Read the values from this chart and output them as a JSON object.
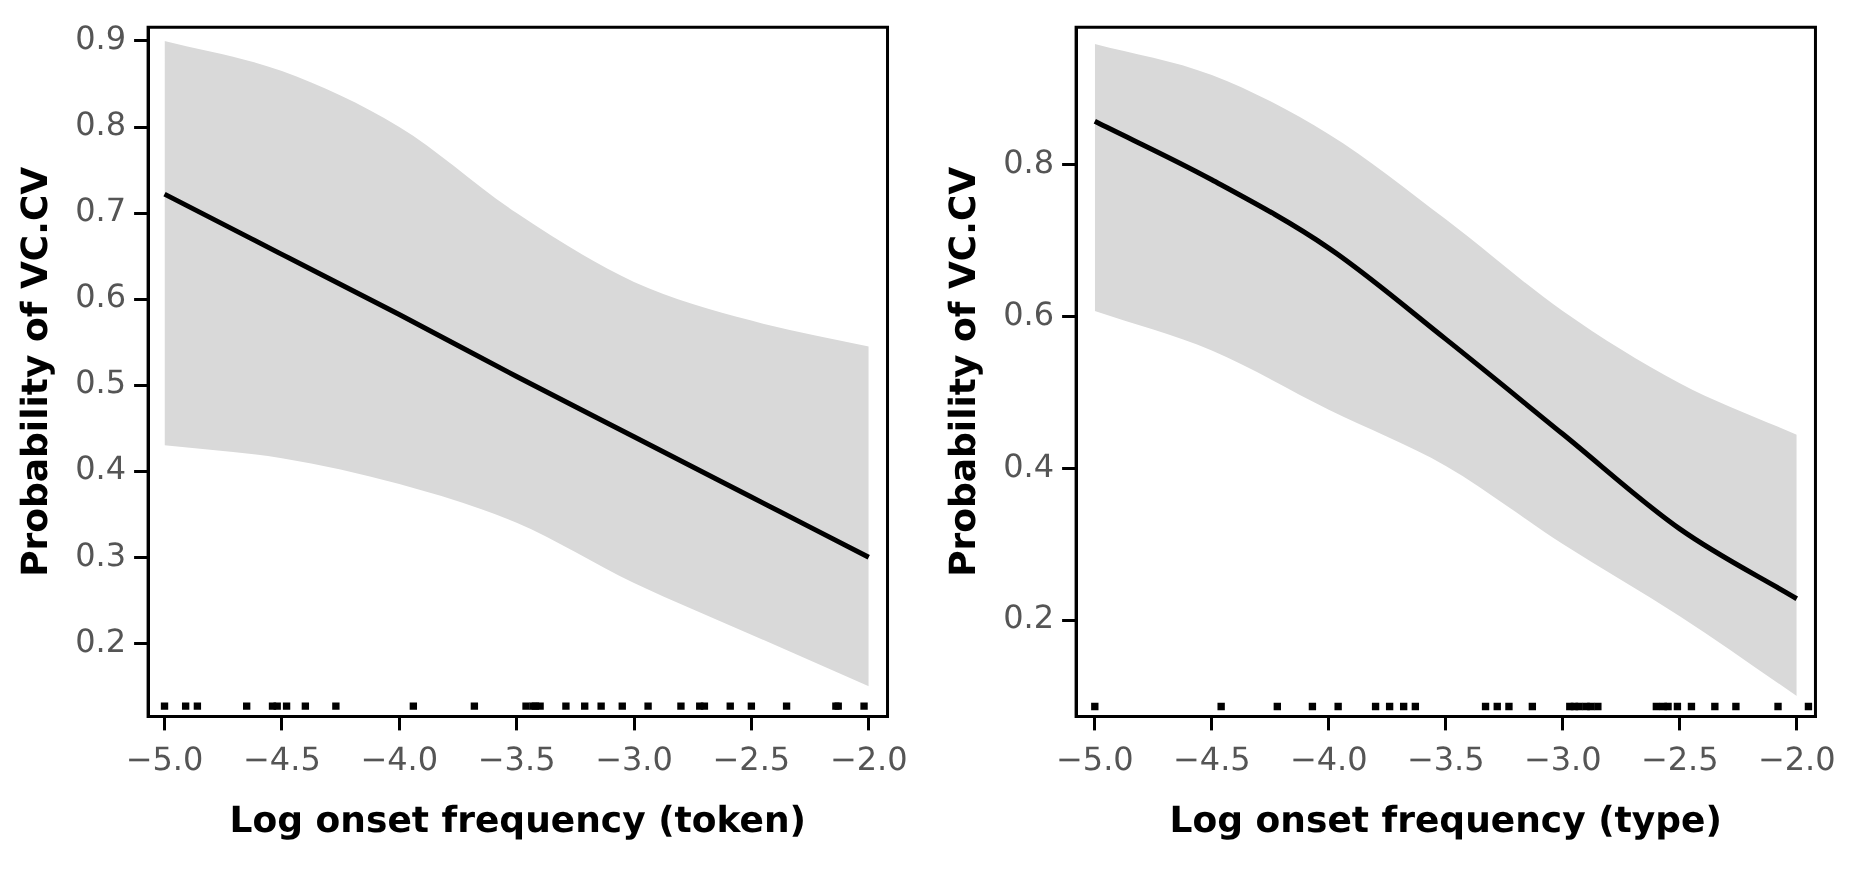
{
  "chart_data": [
    {
      "type": "line",
      "xlabel": "Log onset frequency (token)",
      "ylabel": "Probability of VC.CV",
      "xlim": [
        -5.07,
        -1.92
      ],
      "ylim": [
        0.115,
        0.916
      ],
      "xticks": [
        {
          "value": -5,
          "label": "−5.0"
        },
        {
          "value": -4.5,
          "label": "−4.5"
        },
        {
          "value": -4,
          "label": "−4.0"
        },
        {
          "value": -3.5,
          "label": "−3.5"
        },
        {
          "value": -3,
          "label": "−3.0"
        },
        {
          "value": -2.5,
          "label": "−2.5"
        },
        {
          "value": -2,
          "label": "−2.0"
        }
      ],
      "yticks": [
        0.2,
        0.3,
        0.4,
        0.5,
        0.6,
        0.7,
        0.8,
        0.9
      ],
      "grid": false,
      "legend": false,
      "series": [
        {
          "type": "line",
          "color": "#000000",
          "x": [
            -5,
            -4.5,
            -4,
            -3.5,
            -3,
            -2.5,
            -2
          ],
          "values": [
            0.722,
            0.652,
            0.582,
            0.51,
            0.44,
            0.37,
            0.3
          ],
          "lower": [
            0.43,
            0.415,
            0.385,
            0.34,
            0.27,
            0.21,
            0.15
          ],
          "upper": [
            0.9,
            0.865,
            0.8,
            0.7,
            0.62,
            0.575,
            0.545
          ]
        },
        {
          "type": "scatter",
          "color": "#000000",
          "x": [
            -5.0,
            -4.91,
            -4.86,
            -4.65,
            -4.54,
            -4.52,
            -4.48,
            -4.4,
            -4.27,
            -3.94,
            -3.68,
            -3.46,
            -3.43,
            -3.42,
            -3.4,
            -3.29,
            -3.21,
            -3.14,
            -3.05,
            -2.94,
            -2.8,
            -2.72,
            -2.7,
            -2.59,
            -2.5,
            -2.35,
            -2.14,
            -2.13,
            -2.02
          ],
          "values": [
            0.127,
            0.127,
            0.127,
            0.127,
            0.127,
            0.127,
            0.127,
            0.127,
            0.127,
            0.127,
            0.127,
            0.127,
            0.127,
            0.127,
            0.127,
            0.127,
            0.127,
            0.127,
            0.127,
            0.127,
            0.127,
            0.127,
            0.127,
            0.127,
            0.127,
            0.127,
            0.127,
            0.127,
            0.127
          ]
        }
      ]
    },
    {
      "type": "line",
      "xlabel": "Log onset frequency (type)",
      "ylabel": "Probability of VC.CV",
      "xlim": [
        -5.08,
        -1.92
      ],
      "ylim": [
        0.073,
        0.981
      ],
      "xticks": [
        {
          "value": -5,
          "label": "−5.0"
        },
        {
          "value": -4.5,
          "label": "−4.5"
        },
        {
          "value": -4,
          "label": "−4.0"
        },
        {
          "value": -3.5,
          "label": "−3.5"
        },
        {
          "value": -3,
          "label": "−3.0"
        },
        {
          "value": -2.5,
          "label": "−2.5"
        },
        {
          "value": -2,
          "label": "−2.0"
        }
      ],
      "yticks": [
        0.2,
        0.4,
        0.6,
        0.8
      ],
      "grid": false,
      "legend": false,
      "series": [
        {
          "type": "line",
          "color": "#000000",
          "x": [
            -5,
            -4.5,
            -4,
            -3.5,
            -3,
            -2.5,
            -2
          ],
          "values": [
            0.857,
            0.78,
            0.69,
            0.57,
            0.445,
            0.32,
            0.228
          ],
          "lower": [
            0.607,
            0.555,
            0.477,
            0.403,
            0.3,
            0.205,
            0.1
          ],
          "upper": [
            0.959,
            0.918,
            0.84,
            0.728,
            0.607,
            0.512,
            0.444
          ]
        },
        {
          "type": "scatter",
          "color": "#000000",
          "x": [
            -5.0,
            -4.46,
            -4.22,
            -4.07,
            -3.96,
            -3.8,
            -3.74,
            -3.68,
            -3.63,
            -3.33,
            -3.28,
            -3.23,
            -3.13,
            -2.97,
            -2.95,
            -2.93,
            -2.9,
            -2.88,
            -2.85,
            -2.6,
            -2.57,
            -2.55,
            -2.51,
            -2.45,
            -2.35,
            -2.26,
            -2.08,
            -1.95
          ],
          "values": [
            0.086,
            0.086,
            0.086,
            0.086,
            0.086,
            0.086,
            0.086,
            0.086,
            0.086,
            0.086,
            0.086,
            0.086,
            0.086,
            0.086,
            0.086,
            0.086,
            0.086,
            0.086,
            0.086,
            0.086,
            0.086,
            0.086,
            0.086,
            0.086,
            0.086,
            0.086,
            0.086,
            0.086
          ]
        }
      ]
    }
  ]
}
